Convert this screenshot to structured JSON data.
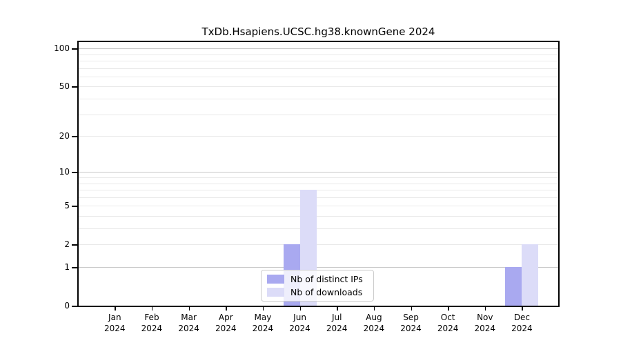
{
  "figure": {
    "background": "#ffffff"
  },
  "chart_data": {
    "type": "bar",
    "title": "TxDb.Hsapiens.UCSC.hg38.knownGene 2024",
    "categories": [
      "Jan 2024",
      "Feb 2024",
      "Mar 2024",
      "Apr 2024",
      "May 2024",
      "Jun 2024",
      "Jul 2024",
      "Aug 2024",
      "Sep 2024",
      "Oct 2024",
      "Nov 2024",
      "Dec 2024"
    ],
    "x_tick_labels": [
      {
        "month": "Jan",
        "year": "2024"
      },
      {
        "month": "Feb",
        "year": "2024"
      },
      {
        "month": "Mar",
        "year": "2024"
      },
      {
        "month": "Apr",
        "year": "2024"
      },
      {
        "month": "May",
        "year": "2024"
      },
      {
        "month": "Jun",
        "year": "2024"
      },
      {
        "month": "Jul",
        "year": "2024"
      },
      {
        "month": "Aug",
        "year": "2024"
      },
      {
        "month": "Sep",
        "year": "2024"
      },
      {
        "month": "Oct",
        "year": "2024"
      },
      {
        "month": "Nov",
        "year": "2024"
      },
      {
        "month": "Dec",
        "year": "2024"
      }
    ],
    "series": [
      {
        "name": "Nb of distinct IPs",
        "color": "#a9a9f0",
        "values": [
          0,
          0,
          0,
          0,
          0,
          2,
          0,
          0,
          0,
          0,
          0,
          1
        ]
      },
      {
        "name": "Nb of downloads",
        "color": "#dcdcf8",
        "values": [
          0,
          0,
          0,
          0,
          0,
          7,
          0,
          0,
          0,
          0,
          0,
          2
        ]
      }
    ],
    "y_axis": {
      "scale": "log10(1+x)",
      "ticks": [
        0,
        1,
        2,
        5,
        10,
        20,
        50,
        100
      ],
      "ylim": [
        0,
        110
      ]
    },
    "grid": {
      "minor_values": [
        2,
        3,
        4,
        5,
        6,
        7,
        8,
        9,
        20,
        30,
        40,
        50,
        60,
        70,
        80,
        90
      ],
      "major_values": [
        1,
        10,
        100
      ],
      "minor_color": "#e9e9e9",
      "major_color": "#c8c8c8"
    },
    "legend": {
      "position": "lower center"
    }
  }
}
